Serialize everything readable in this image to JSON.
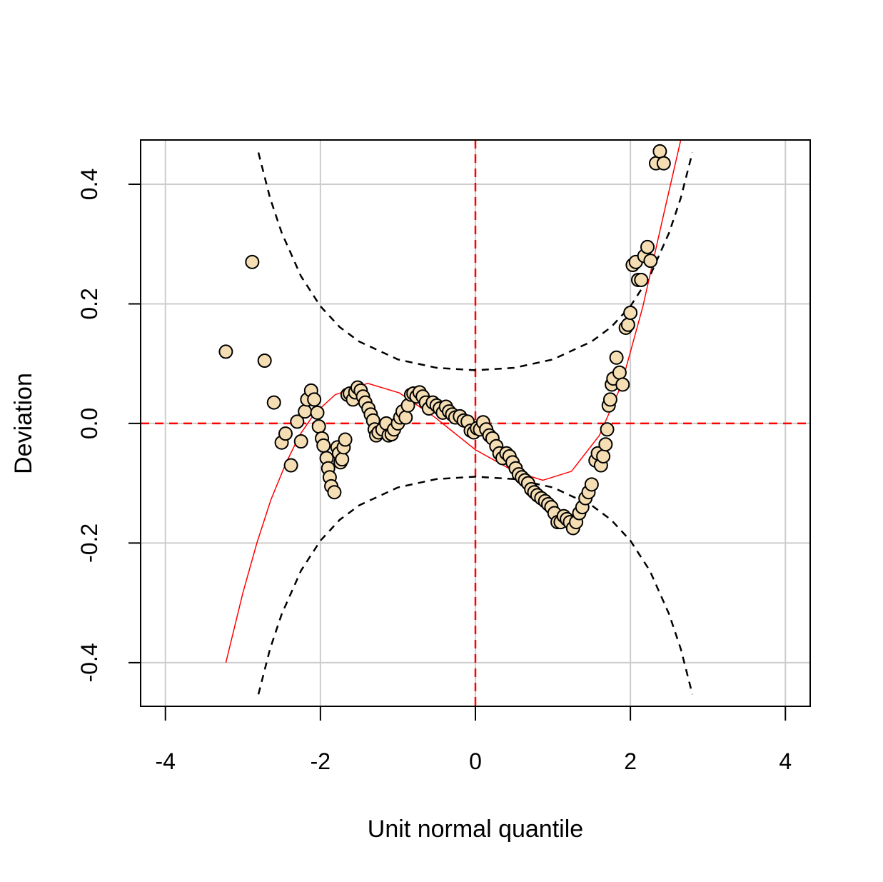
{
  "chart_data": {
    "type": "scatter",
    "xlabel": "Unit normal quantile",
    "ylabel": "Deviation",
    "xlim": [
      -4.32,
      4.32
    ],
    "ylim": [
      -0.473,
      0.474
    ],
    "xticks": [
      -4,
      -2,
      0,
      2,
      4
    ],
    "yticks": [
      -0.4,
      -0.2,
      {
        "value": 0,
        "label": "0.0"
      },
      0.2,
      0.4
    ],
    "grid": true,
    "grid_color": "#cccccc",
    "reference_lines": {
      "x": 0,
      "y": 0,
      "color": "#ff0000"
    },
    "series": [
      {
        "kind": "points",
        "color": "#f5deb3",
        "x": [
          -3.22,
          -2.88,
          -2.72,
          -2.6,
          -2.5,
          -2.45,
          -2.38,
          -2.3,
          -2.25,
          -2.2,
          -2.17,
          -2.12,
          -2.08,
          -2.04,
          -2.02,
          -1.98,
          -1.96,
          -1.92,
          -1.9,
          -1.88,
          -1.86,
          -1.82,
          -1.78,
          -1.76,
          -1.74,
          -1.72,
          -1.7,
          -1.68,
          -1.65,
          -1.62,
          -1.58,
          -1.55,
          -1.52,
          -1.48,
          -1.45,
          -1.42,
          -1.38,
          -1.35,
          -1.32,
          -1.3,
          -1.28,
          -1.25,
          -1.2,
          -1.15,
          -1.12,
          -1.08,
          -1.05,
          -1.0,
          -0.97,
          -0.94,
          -0.9,
          -0.87,
          -0.83,
          -0.8,
          -0.76,
          -0.72,
          -0.68,
          -0.64,
          -0.6,
          -0.55,
          -0.5,
          -0.46,
          -0.42,
          -0.38,
          -0.34,
          -0.3,
          -0.26,
          -0.2,
          -0.15,
          -0.1,
          -0.06,
          -0.02,
          0.02,
          0.06,
          0.1,
          0.14,
          0.18,
          0.22,
          0.27,
          0.31,
          0.35,
          0.4,
          0.44,
          0.48,
          0.52,
          0.56,
          0.6,
          0.64,
          0.68,
          0.72,
          0.76,
          0.8,
          0.85,
          0.9,
          0.94,
          0.98,
          1.02,
          1.06,
          1.1,
          1.14,
          1.18,
          1.22,
          1.26,
          1.3,
          1.34,
          1.38,
          1.42,
          1.46,
          1.5,
          1.55,
          1.58,
          1.62,
          1.65,
          1.68,
          1.7,
          1.72,
          1.74,
          1.76,
          1.78,
          1.82,
          1.86,
          1.9,
          1.94,
          1.97,
          2.0,
          2.03,
          2.07,
          2.1,
          2.14,
          2.18,
          2.22,
          2.26,
          2.33,
          2.38,
          2.43
        ],
        "values": [
          0.12,
          0.27,
          0.105,
          0.035,
          -0.032,
          -0.017,
          -0.07,
          0.003,
          -0.03,
          0.02,
          0.04,
          0.055,
          0.04,
          0.018,
          -0.005,
          -0.025,
          -0.037,
          -0.058,
          -0.075,
          -0.09,
          -0.105,
          -0.115,
          -0.04,
          -0.05,
          -0.065,
          -0.06,
          -0.04,
          -0.027,
          0.048,
          0.05,
          0.04,
          0.052,
          0.06,
          0.055,
          0.045,
          0.035,
          0.025,
          0.015,
          0.005,
          -0.01,
          -0.02,
          -0.015,
          -0.01,
          0.0,
          -0.02,
          -0.018,
          -0.01,
          0.0,
          0.01,
          0.02,
          0.01,
          0.03,
          0.048,
          0.05,
          0.045,
          0.052,
          0.045,
          0.035,
          0.025,
          0.035,
          0.03,
          0.025,
          0.018,
          0.028,
          0.02,
          0.015,
          0.01,
          0.012,
          0.005,
          0.003,
          -0.012,
          -0.015,
          -0.008,
          -0.01,
          0.002,
          -0.01,
          -0.02,
          -0.025,
          -0.038,
          -0.05,
          -0.058,
          -0.05,
          -0.055,
          -0.065,
          -0.075,
          -0.085,
          -0.09,
          -0.095,
          -0.1,
          -0.11,
          -0.115,
          -0.12,
          -0.125,
          -0.13,
          -0.135,
          -0.14,
          -0.15,
          -0.165,
          -0.165,
          -0.155,
          -0.16,
          -0.165,
          -0.175,
          -0.165,
          -0.15,
          -0.14,
          -0.125,
          -0.115,
          -0.102,
          -0.062,
          -0.05,
          -0.07,
          -0.055,
          -0.035,
          -0.01,
          0.03,
          0.04,
          0.065,
          0.075,
          0.11,
          0.085,
          0.065,
          0.16,
          0.165,
          0.185,
          0.265,
          0.27,
          0.24,
          0.24,
          0.28,
          0.295,
          0.272,
          0.435,
          0.455,
          0.435
        ]
      },
      {
        "kind": "line",
        "color": "#ff0000",
        "dash": false,
        "x": [
          -3.22,
          -3.0,
          -2.82,
          -2.64,
          -2.45,
          -2.27,
          -2.08,
          -1.81,
          -1.39,
          -0.98,
          -0.52,
          0,
          0.5,
          0.87,
          1.24,
          1.6,
          1.88,
          2.16,
          2.43,
          2.65
        ],
        "values": [
          -0.4,
          -0.283,
          -0.2,
          -0.128,
          -0.068,
          -0.02,
          0.016,
          0.048,
          0.067,
          0.051,
          0.01,
          -0.044,
          -0.08,
          -0.095,
          -0.08,
          -0.02,
          0.063,
          0.195,
          0.35,
          0.474
        ]
      },
      {
        "kind": "line",
        "color": "#000000",
        "dash": true,
        "x": [
          -2.8,
          -2.65,
          -2.5,
          -2.25,
          -2,
          -1.75,
          -1.5,
          -1,
          -0.5,
          0,
          0.5,
          1,
          1.5,
          1.75,
          2,
          2.25,
          2.5,
          2.65,
          2.8
        ],
        "values": [
          0.453,
          0.377,
          0.319,
          0.246,
          0.196,
          0.161,
          0.137,
          0.107,
          0.093,
          0.089,
          0.093,
          0.107,
          0.137,
          0.161,
          0.196,
          0.246,
          0.319,
          0.377,
          0.453
        ]
      },
      {
        "kind": "line",
        "color": "#000000",
        "dash": true,
        "x": [
          -2.8,
          -2.65,
          -2.5,
          -2.25,
          -2,
          -1.75,
          -1.5,
          -1,
          -0.5,
          0,
          0.5,
          1,
          1.5,
          1.75,
          2,
          2.25,
          2.5,
          2.65,
          2.8
        ],
        "values": [
          -0.453,
          -0.377,
          -0.319,
          -0.246,
          -0.196,
          -0.161,
          -0.137,
          -0.107,
          -0.093,
          -0.089,
          -0.093,
          -0.107,
          -0.137,
          -0.161,
          -0.196,
          -0.246,
          -0.319,
          -0.377,
          -0.453
        ]
      }
    ]
  }
}
